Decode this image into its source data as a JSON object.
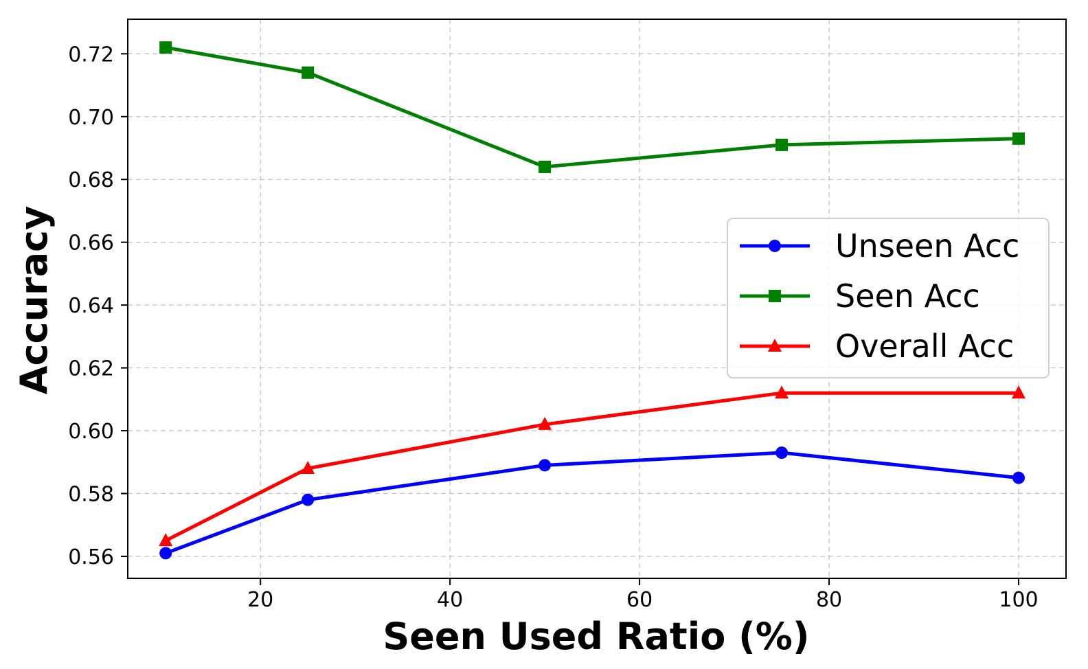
{
  "chart_data": {
    "type": "line",
    "title": "",
    "xlabel": "Seen Used Ratio (%)",
    "ylabel": "Accuracy",
    "xlim": [
      6,
      105
    ],
    "ylim": [
      0.553,
      0.731
    ],
    "xticks": [
      20,
      40,
      60,
      80,
      100
    ],
    "xtick_labels": [
      "20",
      "40",
      "60",
      "80",
      "100"
    ],
    "yticks": [
      0.56,
      0.58,
      0.6,
      0.62,
      0.64,
      0.66,
      0.68,
      0.7,
      0.72
    ],
    "ytick_labels": [
      "0.56",
      "0.58",
      "0.60",
      "0.62",
      "0.64",
      "0.66",
      "0.68",
      "0.70",
      "0.72"
    ],
    "grid": true,
    "legend_position": "center-right",
    "x": [
      10,
      25,
      50,
      75,
      100
    ],
    "series": [
      {
        "name": "Unseen Acc",
        "values": [
          0.561,
          0.578,
          0.589,
          0.593,
          0.585
        ],
        "color": "#0000ff",
        "marker": "circle"
      },
      {
        "name": "Seen Acc",
        "values": [
          0.722,
          0.714,
          0.684,
          0.691,
          0.693
        ],
        "color": "#008000",
        "marker": "square"
      },
      {
        "name": "Overall Acc",
        "values": [
          0.565,
          0.588,
          0.602,
          0.612,
          0.612
        ],
        "color": "#ff0000",
        "marker": "triangle"
      }
    ]
  }
}
